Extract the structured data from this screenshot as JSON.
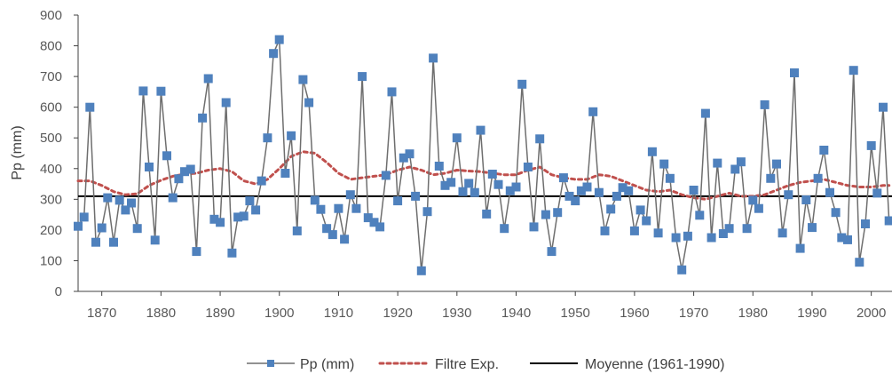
{
  "chart_data": {
    "type": "line",
    "title": "",
    "xlabel": "",
    "ylabel": "Pp (mm)",
    "xlim": [
      1866,
      2003.5
    ],
    "ylim": [
      0,
      900
    ],
    "yticks": [
      0,
      100,
      200,
      300,
      400,
      500,
      600,
      700,
      800,
      900
    ],
    "xticks": [
      1870,
      1880,
      1890,
      1900,
      1910,
      1920,
      1930,
      1940,
      1950,
      1960,
      1970,
      1980,
      1990,
      2000
    ],
    "ytick_labels": [
      "0",
      "100",
      "200",
      "300",
      "400",
      "500",
      "600",
      "700",
      "800",
      "900"
    ],
    "xtick_labels": [
      "1870",
      "1880",
      "1890",
      "1900",
      "1910",
      "1920",
      "1930",
      "1940",
      "1950",
      "1960",
      "1970",
      "1980",
      "1990",
      "2000"
    ],
    "grid": false,
    "legend": "bottom",
    "legend_labels": [
      "Pp (mm)",
      "Filtre Exp.",
      "Moyenne (1961-1990)"
    ],
    "colors": {
      "pp_line": "#6e6e6e",
      "pp_marker": "#4f81bd",
      "filter": "#c0504d",
      "mean": "#000000",
      "axis": "#404040"
    },
    "series": [
      {
        "name": "Pp (mm)",
        "x": [
          1866,
          1867,
          1868,
          1869,
          1870,
          1871,
          1872,
          1873,
          1874,
          1875,
          1876,
          1877,
          1878,
          1879,
          1880,
          1881,
          1882,
          1883,
          1884,
          1885,
          1886,
          1887,
          1888,
          1889,
          1890,
          1891,
          1892,
          1893,
          1894,
          1895,
          1896,
          1897,
          1898,
          1899,
          1900,
          1901,
          1902,
          1903,
          1904,
          1905,
          1906,
          1907,
          1908,
          1909,
          1910,
          1911,
          1912,
          1913,
          1914,
          1915,
          1916,
          1917,
          1918,
          1919,
          1920,
          1921,
          1922,
          1923,
          1924,
          1925,
          1926,
          1927,
          1928,
          1929,
          1930,
          1931,
          1932,
          1933,
          1934,
          1935,
          1936,
          1937,
          1938,
          1939,
          1940,
          1941,
          1942,
          1943,
          1944,
          1945,
          1946,
          1947,
          1948,
          1949,
          1950,
          1951,
          1952,
          1953,
          1954,
          1955,
          1956,
          1957,
          1958,
          1959,
          1960,
          1961,
          1962,
          1963,
          1964,
          1965,
          1966,
          1967,
          1968,
          1969,
          1970,
          1971,
          1972,
          1973,
          1974,
          1975,
          1976,
          1977,
          1978,
          1979,
          1980,
          1981,
          1982,
          1983,
          1984,
          1985,
          1986,
          1987,
          1988,
          1989,
          1990,
          1991,
          1992,
          1993,
          1994,
          1995,
          1996,
          1997,
          1998,
          1999,
          2000,
          2001,
          2002,
          2003
        ],
        "y": [
          212,
          242,
          600,
          160,
          207,
          305,
          160,
          297,
          265,
          288,
          205,
          653,
          405,
          167,
          652,
          442,
          305,
          367,
          390,
          398,
          130,
          565,
          693,
          235,
          225,
          615,
          125,
          242,
          245,
          295,
          265,
          360,
          500,
          775,
          820,
          385,
          507,
          197,
          690,
          615,
          297,
          267,
          205,
          185,
          270,
          170,
          315,
          270,
          700,
          240,
          225,
          210,
          378,
          650,
          295,
          435,
          448,
          310,
          67,
          260,
          760,
          408,
          345,
          355,
          500,
          325,
          352,
          322,
          525,
          252,
          382,
          348,
          205,
          328,
          340,
          675,
          405,
          210,
          497,
          250,
          130,
          257,
          370,
          310,
          295,
          328,
          340,
          585,
          322,
          197,
          268,
          310,
          338,
          328,
          197,
          265,
          230,
          455,
          190,
          415,
          368,
          175,
          70,
          180,
          330,
          248,
          580,
          175,
          418,
          188,
          205,
          398,
          422,
          205,
          297,
          270,
          608,
          368,
          415,
          190,
          315,
          712,
          140,
          298,
          208,
          368,
          460,
          322,
          257,
          175,
          168,
          720,
          95,
          220,
          475,
          320,
          600,
          230
        ]
      },
      {
        "name": "Filtre Exp.",
        "x": [
          1866,
          1868,
          1870,
          1872,
          1874,
          1876,
          1878,
          1880,
          1882,
          1884,
          1886,
          1888,
          1890,
          1892,
          1894,
          1896,
          1898,
          1900,
          1902,
          1904,
          1906,
          1908,
          1910,
          1912,
          1914,
          1916,
          1918,
          1920,
          1922,
          1924,
          1926,
          1928,
          1930,
          1932,
          1934,
          1936,
          1938,
          1940,
          1942,
          1944,
          1946,
          1948,
          1950,
          1952,
          1954,
          1956,
          1958,
          1960,
          1962,
          1964,
          1966,
          1968,
          1970,
          1972,
          1974,
          1976,
          1978,
          1980,
          1982,
          1984,
          1986,
          1988,
          1990,
          1992,
          1994,
          1996,
          1998,
          2000,
          2002,
          2003
        ],
        "y": [
          360,
          360,
          345,
          325,
          315,
          318,
          345,
          362,
          375,
          382,
          385,
          395,
          400,
          390,
          360,
          350,
          365,
          400,
          440,
          455,
          450,
          420,
          385,
          365,
          370,
          375,
          380,
          395,
          405,
          395,
          380,
          385,
          395,
          392,
          390,
          385,
          380,
          380,
          395,
          405,
          380,
          370,
          365,
          365,
          380,
          375,
          360,
          345,
          330,
          325,
          330,
          315,
          305,
          300,
          310,
          320,
          310,
          310,
          315,
          330,
          345,
          355,
          360,
          365,
          355,
          345,
          340,
          340,
          345,
          345
        ]
      },
      {
        "name": "Moyenne (1961-1990)",
        "x": [
          1866,
          2003.5
        ],
        "y": [
          310,
          310
        ]
      }
    ]
  }
}
